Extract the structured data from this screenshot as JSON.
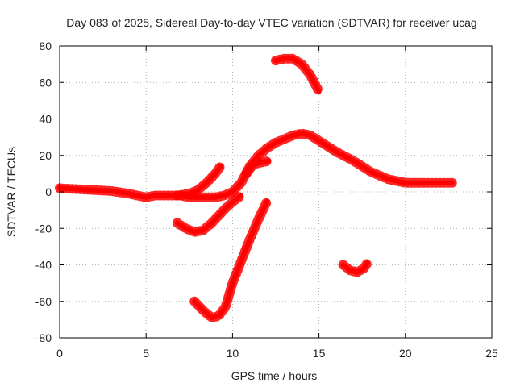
{
  "chart_data": {
    "type": "line",
    "title": "Day 083 of 2025, Sidereal Day-to-day VTEC variation (SDTVAR) for receiver ucag",
    "xlabel": "GPS time / hours",
    "ylabel": "SDTVAR / TECUs",
    "xlim": [
      0,
      25
    ],
    "ylim": [
      -80,
      80
    ],
    "xticks": [
      0,
      5,
      10,
      15,
      20,
      25
    ],
    "yticks": [
      -80,
      -60,
      -40,
      -20,
      0,
      20,
      40,
      60,
      80
    ],
    "grid": true,
    "series_color": "#ff0000",
    "series": [
      {
        "name": "trace-main",
        "x": [
          0,
          1,
          2,
          3,
          4,
          5,
          5.5,
          6,
          6.5,
          7,
          7.5,
          8,
          8.5,
          9,
          9.5,
          10,
          10.5,
          11,
          11.5,
          12,
          12.5,
          13,
          13.5,
          14,
          14.5,
          15,
          16,
          17,
          18,
          19,
          20,
          21,
          22,
          22.7
        ],
        "y": [
          2,
          1.5,
          1,
          0.5,
          -1,
          -3,
          -2,
          -2,
          -2,
          -2,
          -3,
          -3,
          -3,
          -3,
          -2,
          0,
          5,
          14,
          20,
          24,
          27,
          29,
          31,
          32,
          31,
          28,
          22,
          17,
          11,
          7,
          5,
          5,
          5,
          5
        ]
      },
      {
        "name": "trace-rise-early",
        "x": [
          6.8,
          7.5,
          8,
          8.5,
          9,
          9.3
        ],
        "y": [
          -2,
          -1,
          1,
          5,
          10,
          14
        ]
      },
      {
        "name": "trace-upper-arc",
        "x": [
          12.5,
          13,
          13.5,
          14,
          14.5,
          15
        ],
        "y": [
          72,
          73,
          73,
          70,
          64,
          55
        ]
      },
      {
        "name": "trace-mid-dip",
        "x": [
          6.8,
          7.3,
          7.8,
          8.3,
          8.8,
          9.3,
          9.7,
          10.2,
          10.5
        ],
        "y": [
          -17,
          -20,
          -22,
          -21,
          -17,
          -12,
          -8,
          -4,
          -2
        ]
      },
      {
        "name": "trace-deep-dip",
        "x": [
          7.8,
          8.3,
          8.8,
          9.2,
          9.6,
          10,
          10.5,
          11,
          11.5,
          12
        ],
        "y": [
          -60,
          -65,
          -69,
          -68,
          -63,
          -50,
          -38,
          -26,
          -15,
          -5
        ]
      },
      {
        "name": "trace-lower-right-arc",
        "x": [
          16.4,
          16.8,
          17.2,
          17.6,
          17.8
        ],
        "y": [
          -40,
          -43,
          -44,
          -42,
          -39
        ]
      },
      {
        "name": "trace-short-mid",
        "x": [
          10.8,
          11.2,
          11.6,
          12.1
        ],
        "y": [
          10,
          15,
          16,
          17
        ]
      }
    ]
  }
}
